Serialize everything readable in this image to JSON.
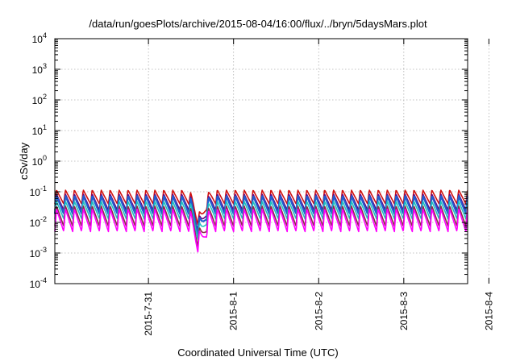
{
  "chart_data": {
    "type": "line",
    "title": "/data/run/goesPlots/archive/2015-08-04/16:00/flux/../bryn/5daysMars.plot",
    "xlabel": "Coordinated Universal Time (UTC)",
    "ylabel": "cSv/day",
    "y_scale": "log",
    "ylim": [
      0.0001,
      10000
    ],
    "xlim": [
      -1.1,
      3.75
    ],
    "grid": true,
    "legend": "none",
    "y_ticks": [
      {
        "base": "10",
        "exp": "-4",
        "value": 0.0001
      },
      {
        "base": "10",
        "exp": "-3",
        "value": 0.001
      },
      {
        "base": "10",
        "exp": "-2",
        "value": 0.01
      },
      {
        "base": "10",
        "exp": "-1",
        "value": 0.1
      },
      {
        "base": "10",
        "exp": "0",
        "value": 1
      },
      {
        "base": "10",
        "exp": "1",
        "value": 10
      },
      {
        "base": "10",
        "exp": "2",
        "value": 100
      },
      {
        "base": "10",
        "exp": "3",
        "value": 1000
      },
      {
        "base": "10",
        "exp": "4",
        "value": 10000
      }
    ],
    "x_ticks": [
      {
        "label": "2015-7-31",
        "value": 0
      },
      {
        "label": "2015-8-1",
        "value": 1
      },
      {
        "label": "2015-8-2",
        "value": 2
      },
      {
        "label": "2015-8-3",
        "value": 3
      },
      {
        "label": "2015-8-4",
        "value": 4
      }
    ],
    "sawtooth": {
      "period_days": 0.105,
      "dip_center": 0.6,
      "dip_width": 0.06,
      "dip_depth": 5
    },
    "series": [
      {
        "color": "#d01010",
        "peak": 0.115,
        "trough": 0.04
      },
      {
        "color": "#6a0080",
        "peak": 0.085,
        "trough": 0.025
      },
      {
        "color": "#1e5fd0",
        "peak": 0.075,
        "trough": 0.019
      },
      {
        "color": "#20c0c0",
        "peak": 0.05,
        "trough": 0.013
      },
      {
        "color": "#8a2a4a",
        "peak": 0.035,
        "trough": 0.0075
      },
      {
        "color": "#ff00ff",
        "peak": 0.028,
        "trough": 0.005
      }
    ]
  }
}
